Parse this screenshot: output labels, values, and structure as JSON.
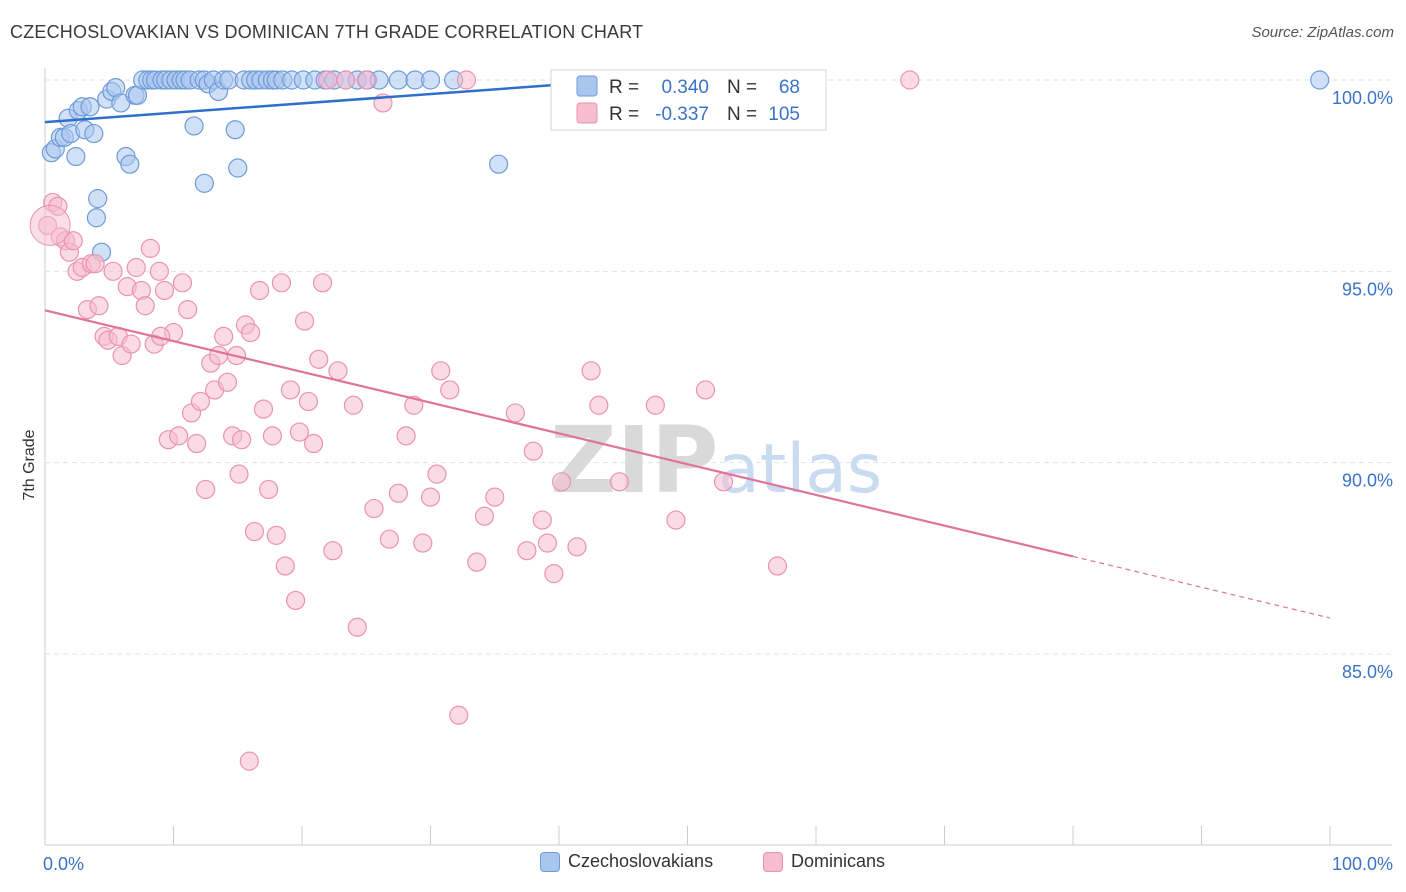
{
  "header": {
    "title": "CZECHOSLOVAKIAN VS DOMINICAN 7TH GRADE CORRELATION CHART",
    "source": "Source: ZipAtlas.com"
  },
  "watermark": {
    "zip": "ZIP",
    "atlas": "atlas"
  },
  "legend_top": {
    "rows": [
      {
        "r_label": "R =",
        "r_value": "0.340",
        "n_label": "N =",
        "n_value": "68"
      },
      {
        "r_label": "R =",
        "r_value": "-0.337",
        "n_label": "N =",
        "n_value": "105"
      }
    ]
  },
  "legend_bottom": {
    "items": [
      {
        "label": "Czechoslovakians"
      },
      {
        "label": "Dominicans"
      }
    ]
  },
  "colors": {
    "blue_fill": "#a9c6ef",
    "blue_stroke": "#6f9bd8",
    "blue_line": "#2f6fcc",
    "pink_fill": "#f6bcd0",
    "pink_stroke": "#ea93b1",
    "pink_line": "#e0739a",
    "value_text": "#3a73c9",
    "grid": "#e3e3e3"
  },
  "chart_data": {
    "type": "scatter",
    "title": "CZECHOSLOVAKIAN VS DOMINICAN 7TH GRADE CORRELATION CHART",
    "xlabel": "",
    "ylabel": "7th Grade",
    "x_tick_labels": [
      "0.0%",
      "100.0%"
    ],
    "y_tick_labels": [
      "100.0%",
      "95.0%",
      "90.0%",
      "85.0%"
    ],
    "y_ticks": [
      100,
      95,
      90,
      85
    ],
    "xlim": [
      0,
      100
    ],
    "ylim": [
      80.4,
      100.8
    ],
    "grid": true,
    "legend_position": "top-center",
    "series": [
      {
        "name": "Czechoslovakians",
        "r": 0.34,
        "n": 68,
        "trend": {
          "x0": 0,
          "y0": 98.9,
          "x1": 45,
          "y1": 100.0
        },
        "points": [
          [
            0.5,
            98.1
          ],
          [
            0.8,
            98.2
          ],
          [
            1.2,
            98.5
          ],
          [
            1.5,
            98.5
          ],
          [
            1.8,
            99.0
          ],
          [
            2.0,
            98.6
          ],
          [
            2.4,
            98.0
          ],
          [
            2.6,
            99.2
          ],
          [
            2.9,
            99.3
          ],
          [
            3.1,
            98.7
          ],
          [
            3.5,
            99.3
          ],
          [
            3.8,
            98.6
          ],
          [
            4.1,
            96.9
          ],
          [
            4.4,
            95.5
          ],
          [
            4.8,
            99.5
          ],
          [
            5.2,
            99.7
          ],
          [
            5.5,
            99.8
          ],
          [
            5.9,
            99.4
          ],
          [
            6.3,
            98.0
          ],
          [
            6.6,
            97.8
          ],
          [
            7.0,
            99.6
          ],
          [
            7.2,
            99.6
          ],
          [
            7.6,
            100
          ],
          [
            8.0,
            100
          ],
          [
            8.3,
            100
          ],
          [
            8.6,
            100
          ],
          [
            9.1,
            100
          ],
          [
            9.4,
            100
          ],
          [
            9.8,
            100
          ],
          [
            10.2,
            100
          ],
          [
            10.6,
            100
          ],
          [
            10.9,
            100
          ],
          [
            11.3,
            100
          ],
          [
            11.6,
            98.8
          ],
          [
            12.0,
            100
          ],
          [
            12.4,
            100
          ],
          [
            12.7,
            99.9
          ],
          [
            13.1,
            100
          ],
          [
            13.5,
            99.7
          ],
          [
            13.9,
            100
          ],
          [
            14.3,
            100
          ],
          [
            14.8,
            98.7
          ],
          [
            15.0,
            97.7
          ],
          [
            15.5,
            100
          ],
          [
            16.0,
            100
          ],
          [
            16.4,
            100
          ],
          [
            16.8,
            100
          ],
          [
            17.3,
            100
          ],
          [
            17.7,
            100
          ],
          [
            18.0,
            100
          ],
          [
            18.5,
            100
          ],
          [
            19.2,
            100
          ],
          [
            20.1,
            100
          ],
          [
            21.0,
            100
          ],
          [
            21.8,
            100
          ],
          [
            12.4,
            97.3
          ],
          [
            4.0,
            96.4
          ],
          [
            22.5,
            100
          ],
          [
            23.4,
            100
          ],
          [
            24.3,
            100
          ],
          [
            25.1,
            100
          ],
          [
            26.0,
            100
          ],
          [
            27.5,
            100
          ],
          [
            28.8,
            100
          ],
          [
            30.0,
            100
          ],
          [
            31.8,
            100
          ],
          [
            35.3,
            97.8
          ],
          [
            99.2,
            100
          ]
        ]
      },
      {
        "name": "Dominicans",
        "r": -0.337,
        "n": 105,
        "trend": {
          "x0": 0,
          "y0": 93.98,
          "x1": 80,
          "y1": 87.55,
          "dash_to_x": 100,
          "dash_to_y": 85.94
        },
        "points": [
          [
            0.2,
            96.2
          ],
          [
            0.6,
            96.8
          ],
          [
            1.0,
            96.7
          ],
          [
            1.2,
            95.9
          ],
          [
            1.6,
            95.8
          ],
          [
            1.9,
            95.5
          ],
          [
            2.2,
            95.8
          ],
          [
            2.5,
            95.0
          ],
          [
            2.9,
            95.1
          ],
          [
            3.3,
            94.0
          ],
          [
            3.6,
            95.2
          ],
          [
            3.9,
            95.2
          ],
          [
            4.2,
            94.1
          ],
          [
            4.6,
            93.3
          ],
          [
            4.9,
            93.2
          ],
          [
            5.3,
            95.0
          ],
          [
            5.7,
            93.3
          ],
          [
            6.0,
            92.8
          ],
          [
            6.4,
            94.6
          ],
          [
            6.7,
            93.1
          ],
          [
            7.1,
            95.1
          ],
          [
            7.5,
            94.5
          ],
          [
            7.8,
            94.1
          ],
          [
            8.2,
            95.6
          ],
          [
            8.5,
            93.1
          ],
          [
            8.9,
            95.0
          ],
          [
            9.3,
            94.5
          ],
          [
            9.6,
            90.6
          ],
          [
            10.0,
            93.4
          ],
          [
            10.4,
            90.7
          ],
          [
            10.7,
            94.7
          ],
          [
            11.1,
            94.0
          ],
          [
            11.4,
            91.3
          ],
          [
            11.8,
            90.5
          ],
          [
            12.1,
            91.6
          ],
          [
            12.5,
            89.3
          ],
          [
            12.9,
            92.6
          ],
          [
            13.2,
            91.9
          ],
          [
            13.5,
            92.8
          ],
          [
            13.9,
            93.3
          ],
          [
            14.2,
            92.1
          ],
          [
            14.6,
            90.7
          ],
          [
            14.9,
            92.8
          ],
          [
            15.3,
            90.6
          ],
          [
            15.6,
            93.6
          ],
          [
            16.0,
            93.4
          ],
          [
            16.3,
            88.2
          ],
          [
            16.7,
            94.5
          ],
          [
            17.0,
            91.4
          ],
          [
            17.4,
            89.3
          ],
          [
            17.7,
            90.7
          ],
          [
            18.0,
            88.1
          ],
          [
            18.4,
            94.7
          ],
          [
            18.7,
            87.3
          ],
          [
            19.1,
            91.9
          ],
          [
            19.5,
            86.4
          ],
          [
            19.8,
            90.8
          ],
          [
            20.2,
            93.7
          ],
          [
            20.5,
            91.6
          ],
          [
            20.9,
            90.5
          ],
          [
            21.3,
            92.7
          ],
          [
            21.6,
            94.7
          ],
          [
            22.0,
            100
          ],
          [
            22.4,
            87.7
          ],
          [
            22.8,
            92.4
          ],
          [
            23.4,
            100
          ],
          [
            24.0,
            91.5
          ],
          [
            24.3,
            85.7
          ],
          [
            25.0,
            100
          ],
          [
            25.6,
            88.8
          ],
          [
            26.3,
            99.4
          ],
          [
            26.8,
            88.0
          ],
          [
            27.5,
            89.2
          ],
          [
            28.1,
            90.7
          ],
          [
            28.7,
            91.5
          ],
          [
            29.4,
            87.9
          ],
          [
            30.0,
            89.1
          ],
          [
            30.8,
            92.4
          ],
          [
            31.5,
            91.9
          ],
          [
            32.2,
            83.4
          ],
          [
            32.8,
            100
          ],
          [
            33.6,
            87.4
          ],
          [
            34.2,
            88.6
          ],
          [
            35.0,
            89.1
          ],
          [
            36.6,
            91.3
          ],
          [
            37.5,
            87.7
          ],
          [
            38.0,
            90.3
          ],
          [
            38.7,
            88.5
          ],
          [
            39.1,
            87.9
          ],
          [
            39.6,
            87.1
          ],
          [
            40.2,
            89.5
          ],
          [
            41.4,
            87.8
          ],
          [
            42.5,
            92.4
          ],
          [
            43.1,
            91.5
          ],
          [
            44.7,
            89.5
          ],
          [
            47.5,
            91.5
          ],
          [
            49.1,
            88.5
          ],
          [
            51.4,
            91.9
          ],
          [
            52.8,
            89.5
          ],
          [
            57.0,
            87.3
          ],
          [
            67.3,
            100
          ],
          [
            15.9,
            82.2
          ],
          [
            30.5,
            89.7
          ],
          [
            9.0,
            93.3
          ],
          [
            15.1,
            89.7
          ]
        ]
      }
    ]
  }
}
